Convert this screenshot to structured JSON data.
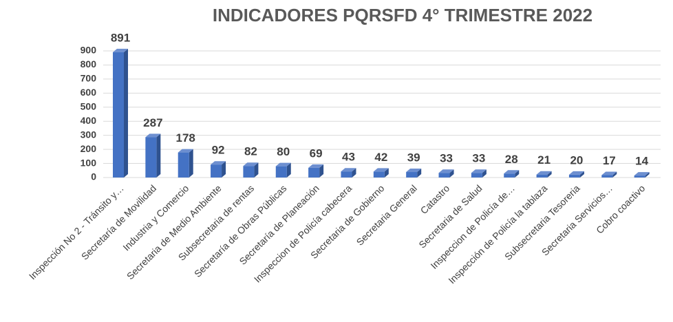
{
  "chart_data": {
    "type": "bar3d",
    "title": "INDICADORES PQRSFD  4° TRIMESTRE 2022",
    "categories": [
      "Inspección No 2 - Tránsito y…",
      "Secretaría de Movilidad",
      "Industria y Comercio",
      "Secretaria de Medio Ambiente",
      "Subsecretaria de rentas",
      "Secretaría de Obras Públicas",
      "Secretaría de Planeación",
      "Inspeccion de Policía cabecera",
      "Secretaria de Gobierno",
      "Secretaria General",
      "Catastro",
      "Secretaria de Salud",
      "Inspeccion de Policía de…",
      "Inspección de Policía la tablaza",
      "Subsecretaria Tesoreria",
      "Secretaria Servicios…",
      "Cobro coactivo"
    ],
    "values": [
      891,
      287,
      178,
      92,
      82,
      80,
      69,
      43,
      42,
      39,
      33,
      33,
      28,
      21,
      20,
      17,
      14
    ],
    "color": "#4472c4",
    "ylim": [
      0,
      900
    ],
    "yticks": [
      0,
      100,
      200,
      300,
      400,
      500,
      600,
      700,
      800,
      900
    ],
    "grid": true
  }
}
